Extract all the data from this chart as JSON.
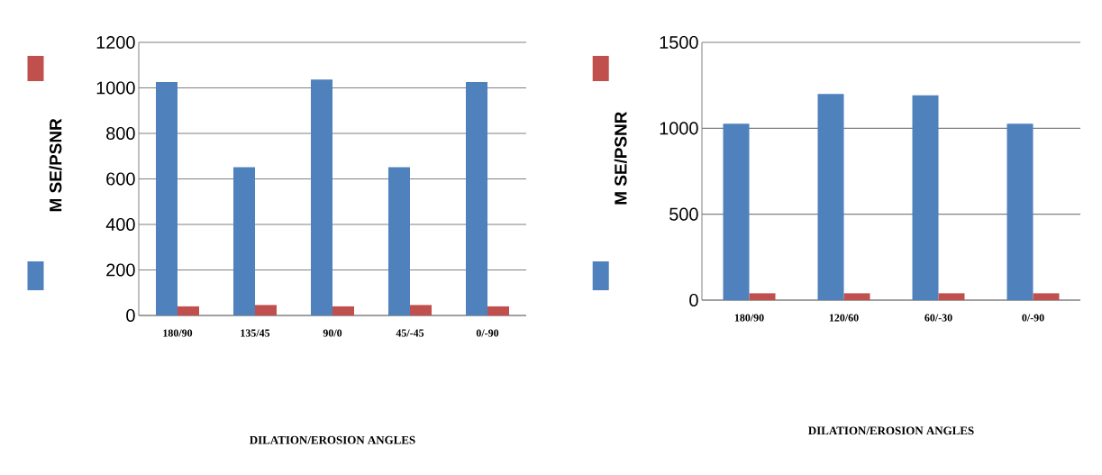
{
  "chart_data": [
    {
      "type": "bar",
      "ylabel": "M SE/PSNR",
      "xlabel": "DILATION/EROSION ANGLES",
      "categories": [
        "180/90",
        "135/45",
        "90/0",
        "45/-45",
        "0/-90"
      ],
      "series": [
        {
          "color": "#4f81bd",
          "values": [
            1026,
            651,
            1037,
            651,
            1026
          ]
        },
        {
          "color": "#c0504d",
          "values": [
            40,
            46,
            40,
            46,
            40
          ]
        }
      ],
      "ylim": [
        0,
        1200
      ],
      "yticks": [
        0,
        200,
        400,
        600,
        800,
        1000,
        1200
      ],
      "grid": "y"
    },
    {
      "type": "bar",
      "ylabel": "M SE/PSNR",
      "xlabel": "DILATION/EROSION ANGLES",
      "categories": [
        "180/90",
        "120/60",
        "60/-30",
        "0/-90"
      ],
      "series": [
        {
          "color": "#4f81bd",
          "values": [
            1026,
            1200,
            1192,
            1026
          ]
        },
        {
          "color": "#c0504d",
          "values": [
            40,
            40,
            40,
            40
          ]
        }
      ],
      "ylim": [
        0,
        1500
      ],
      "yticks": [
        0,
        500,
        1000,
        1500
      ],
      "grid": "y"
    }
  ]
}
